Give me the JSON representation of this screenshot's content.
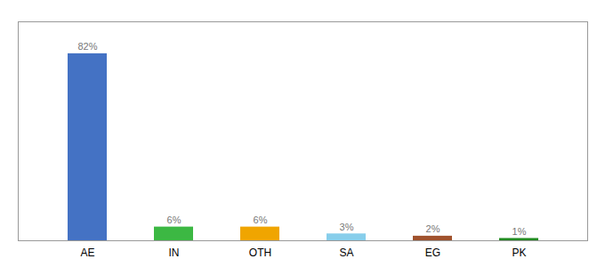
{
  "chart_data": {
    "type": "bar",
    "categories": [
      "AE",
      "IN",
      "OTH",
      "SA",
      "EG",
      "PK"
    ],
    "values": [
      82,
      6,
      6,
      3,
      2,
      1
    ],
    "value_labels": [
      "82%",
      "6%",
      "6%",
      "3%",
      "2%",
      "1%"
    ],
    "colors": [
      "#4472c4",
      "#3cb843",
      "#f0a500",
      "#87ceeb",
      "#a0522d",
      "#228b22"
    ],
    "ylim": [
      0,
      96
    ],
    "data_labels": true,
    "tick_labels": "x",
    "grid": false
  }
}
